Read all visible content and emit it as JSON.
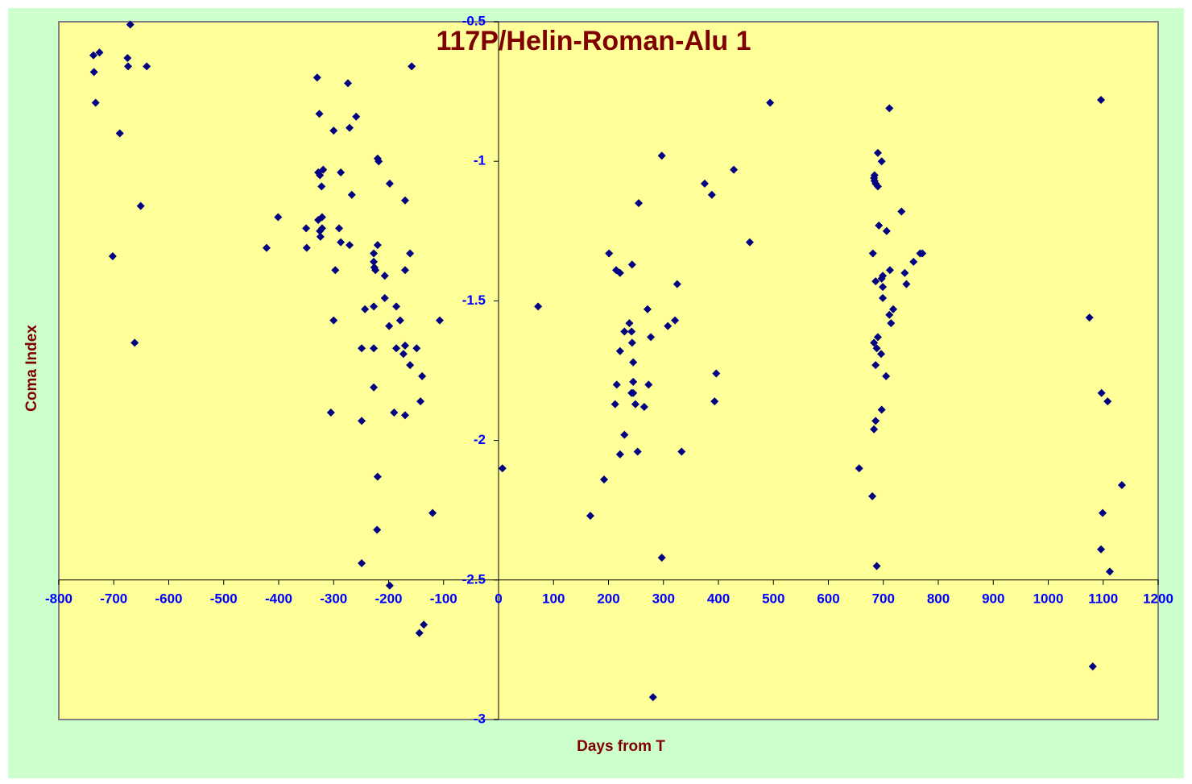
{
  "chart_data": {
    "type": "scatter",
    "title": "117P/Helin-Roman-Alu 1",
    "x_label": "Days from T",
    "y_label": "Coma Index",
    "color": "#000080",
    "xlim": [
      -800,
      1200
    ],
    "ylim": [
      -3,
      -0.5
    ],
    "xticks": [
      -800,
      -700,
      -600,
      -500,
      -400,
      -300,
      -200,
      -100,
      0,
      100,
      200,
      300,
      400,
      500,
      600,
      700,
      800,
      900,
      1000,
      1100,
      1200
    ],
    "yticks": [
      -0.5,
      -1,
      -1.5,
      -2,
      -2.5,
      -3
    ],
    "x_axis_crosses": -2.5,
    "y_axis_crosses": 0,
    "x": [
      -670,
      -737,
      -726,
      -675,
      -674,
      -640,
      -736,
      -733,
      -689,
      -651,
      -702,
      -662,
      -158,
      -330,
      -274,
      -326,
      -259,
      -271,
      -300,
      -220,
      -218,
      -328,
      -319,
      -325,
      -287,
      -198,
      -322,
      -267,
      -170,
      -401,
      -321,
      -328,
      -350,
      -290,
      -325,
      -321,
      -324,
      -287,
      -271,
      -220,
      -422,
      -349,
      -227,
      -161,
      -227,
      -226,
      -224,
      -297,
      -170,
      -207,
      -207,
      -227,
      -186,
      -243,
      -300,
      -179,
      -107,
      -199,
      -249,
      -227,
      -186,
      -170,
      -149,
      -173,
      -161,
      -139,
      -227,
      -142,
      -305,
      -190,
      -170,
      -249,
      -220,
      -120,
      -221,
      -249,
      -198,
      -136,
      -144,
      7,
      72,
      167,
      192,
      201,
      214,
      221,
      243,
      229,
      238,
      242,
      221,
      243,
      245,
      215,
      245,
      242,
      245,
      212,
      249,
      229,
      221,
      253,
      255,
      271,
      273,
      265,
      277,
      297,
      308,
      321,
      325,
      333,
      281,
      297,
      375,
      388,
      428,
      396,
      393,
      457,
      494,
      656,
      680,
      688,
      711,
      690,
      697,
      684,
      683,
      684,
      686,
      690,
      733,
      692,
      706,
      681,
      699,
      697,
      686,
      712,
      739,
      742,
      755,
      767,
      771,
      699,
      699,
      718,
      711,
      714,
      690,
      683,
      688,
      696,
      686,
      705,
      697,
      686,
      683,
      1096,
      1075,
      1097,
      1108,
      1134,
      1099,
      1096,
      1112,
      1081
    ],
    "values": [
      -0.51,
      -0.62,
      -0.61,
      -0.63,
      -0.66,
      -0.66,
      -0.68,
      -0.79,
      -0.9,
      -1.16,
      -1.34,
      -1.65,
      -0.66,
      -0.7,
      -0.72,
      -0.83,
      -0.84,
      -0.88,
      -0.89,
      -0.99,
      -1,
      -1.04,
      -1.03,
      -1.05,
      -1.04,
      -1.08,
      -1.09,
      -1.12,
      -1.14,
      -1.2,
      -1.2,
      -1.21,
      -1.24,
      -1.24,
      -1.25,
      -1.24,
      -1.27,
      -1.29,
      -1.3,
      -1.3,
      -1.31,
      -1.31,
      -1.33,
      -1.33,
      -1.36,
      -1.38,
      -1.39,
      -1.39,
      -1.39,
      -1.41,
      -1.49,
      -1.52,
      -1.52,
      -1.53,
      -1.57,
      -1.57,
      -1.57,
      -1.59,
      -1.67,
      -1.67,
      -1.67,
      -1.66,
      -1.67,
      -1.69,
      -1.73,
      -1.77,
      -1.81,
      -1.86,
      -1.9,
      -1.9,
      -1.91,
      -1.93,
      -2.13,
      -2.26,
      -2.32,
      -2.44,
      -2.52,
      -2.66,
      -2.69,
      -2.1,
      -1.52,
      -2.27,
      -2.14,
      -1.33,
      -1.39,
      -1.4,
      -1.37,
      -1.61,
      -1.58,
      -1.61,
      -1.68,
      -1.65,
      -1.72,
      -1.8,
      -1.79,
      -1.83,
      -1.83,
      -1.87,
      -1.87,
      -1.98,
      -2.05,
      -2.04,
      -1.15,
      -1.53,
      -1.8,
      -1.88,
      -1.63,
      -0.98,
      -1.59,
      -1.57,
      -1.44,
      -2.04,
      -2.92,
      -2.42,
      -1.08,
      -1.12,
      -1.03,
      -1.76,
      -1.86,
      -1.29,
      -0.79,
      -2.1,
      -2.2,
      -2.45,
      -0.81,
      -0.97,
      -1,
      -1.05,
      -1.06,
      -1.07,
      -1.08,
      -1.09,
      -1.18,
      -1.23,
      -1.25,
      -1.33,
      -1.41,
      -1.42,
      -1.43,
      -1.39,
      -1.4,
      -1.44,
      -1.36,
      -1.33,
      -1.33,
      -1.45,
      -1.49,
      -1.53,
      -1.55,
      -1.58,
      -1.63,
      -1.65,
      -1.67,
      -1.69,
      -1.73,
      -1.77,
      -1.89,
      -1.93,
      -1.96,
      -0.78,
      -1.56,
      -1.83,
      -1.86,
      -2.16,
      -2.26,
      -2.39,
      -2.47,
      -2.81
    ]
  }
}
